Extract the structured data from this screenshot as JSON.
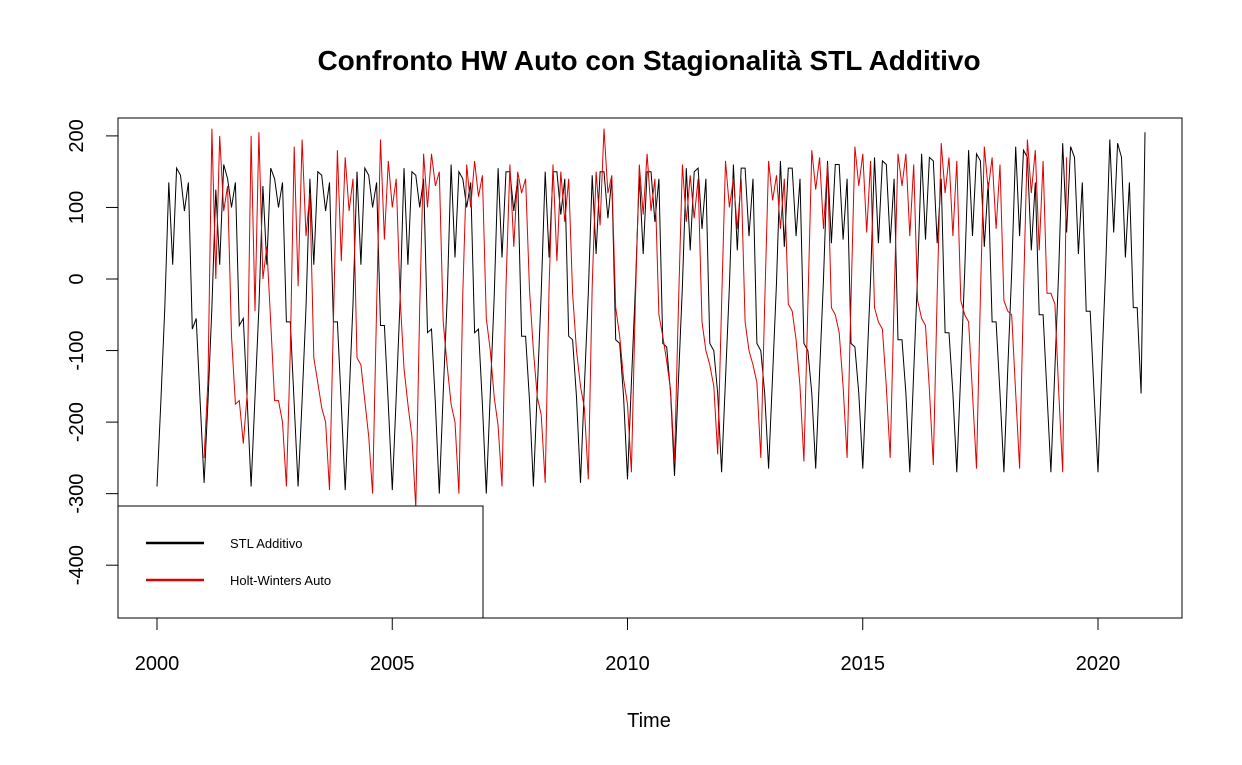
{
  "chart_data": {
    "type": "line",
    "title": "Confronto HW Auto con Stagionalità STL Additivo",
    "xlabel": "Time",
    "ylabel": "",
    "xlim": [
      2000,
      2021
    ],
    "ylim": [
      -470,
      225
    ],
    "x_ticks": [
      "2000",
      "2005",
      "2010",
      "2015",
      "2020"
    ],
    "y_ticks": [
      "200",
      "100",
      "0",
      "-100",
      "-200",
      "-300",
      "-400"
    ],
    "grid": false,
    "legend_position": "bottom-left",
    "frequency": 12,
    "series": [
      {
        "name": "STL Additivo",
        "color": "#000000",
        "start": 2000.0,
        "values": [
          -290,
          -170,
          -40,
          135,
          20,
          155,
          145,
          95,
          135,
          -70,
          -55,
          -170,
          -285,
          -170,
          -40,
          125,
          20,
          160,
          140,
          100,
          135,
          -65,
          -55,
          -170,
          -290,
          -165,
          -40,
          130,
          20,
          155,
          140,
          100,
          135,
          -60,
          -60,
          -175,
          -290,
          -170,
          -40,
          140,
          20,
          150,
          145,
          95,
          135,
          -60,
          -60,
          -175,
          -295,
          -165,
          -35,
          150,
          20,
          155,
          145,
          100,
          135,
          -65,
          -65,
          -175,
          -295,
          -165,
          -30,
          155,
          20,
          150,
          145,
          100,
          140,
          -75,
          -70,
          -175,
          -300,
          -160,
          -30,
          160,
          30,
          150,
          140,
          100,
          135,
          -75,
          -70,
          -175,
          -300,
          -160,
          -25,
          155,
          30,
          150,
          150,
          95,
          140,
          -80,
          -80,
          -170,
          -290,
          -155,
          -20,
          150,
          30,
          150,
          150,
          90,
          140,
          -80,
          -85,
          -165,
          -285,
          -150,
          -20,
          145,
          35,
          150,
          150,
          85,
          140,
          -85,
          -90,
          -165,
          -280,
          -145,
          -15,
          145,
          35,
          150,
          150,
          80,
          140,
          -90,
          -95,
          -160,
          -275,
          -140,
          -10,
          155,
          40,
          150,
          155,
          70,
          140,
          -90,
          -100,
          -160,
          -270,
          -140,
          -10,
          160,
          40,
          155,
          155,
          60,
          140,
          -90,
          -100,
          -160,
          -265,
          -135,
          -5,
          165,
          45,
          155,
          155,
          60,
          140,
          -90,
          -100,
          -160,
          -265,
          -130,
          0,
          165,
          50,
          160,
          160,
          55,
          140,
          -90,
          -95,
          -160,
          -265,
          -130,
          0,
          170,
          50,
          165,
          160,
          50,
          140,
          -85,
          -85,
          -160,
          -270,
          -130,
          5,
          175,
          55,
          170,
          165,
          50,
          140,
          -75,
          -75,
          -160,
          -270,
          -130,
          10,
          180,
          60,
          175,
          165,
          45,
          135,
          -60,
          -60,
          -160,
          -270,
          -125,
          10,
          185,
          60,
          180,
          170,
          40,
          135,
          -50,
          -50,
          -160,
          -270,
          -125,
          15,
          190,
          65,
          185,
          170,
          35,
          135,
          -45,
          -45,
          -160,
          -270,
          -120,
          20,
          195,
          65,
          190,
          170,
          30,
          135,
          -40,
          -40,
          -160,
          205
        ]
      },
      {
        "name": "Holt-Winters Auto",
        "color": "#e00000",
        "start": 2001.0,
        "values": [
          -250,
          -140,
          210,
          0,
          200,
          95,
          130,
          -80,
          -175,
          -170,
          -230,
          -160,
          200,
          -45,
          205,
          0,
          45,
          -60,
          -170,
          -170,
          -200,
          -290,
          -100,
          185,
          -10,
          195,
          60,
          120,
          -110,
          -145,
          -180,
          -200,
          -295,
          -60,
          180,
          25,
          170,
          95,
          140,
          -110,
          -120,
          -170,
          -220,
          -300,
          -40,
          195,
          55,
          165,
          100,
          140,
          -25,
          -125,
          -175,
          -220,
          -320,
          -40,
          175,
          100,
          175,
          130,
          150,
          -60,
          -120,
          -175,
          -200,
          -300,
          -20,
          160,
          100,
          165,
          115,
          145,
          -55,
          -100,
          -165,
          -205,
          -290,
          -10,
          160,
          45,
          150,
          120,
          140,
          -15,
          -100,
          -165,
          -190,
          -285,
          -10,
          160,
          25,
          150,
          80,
          140,
          -20,
          -100,
          -150,
          -180,
          -280,
          -10,
          150,
          75,
          210,
          120,
          145,
          -40,
          -80,
          -140,
          -175,
          -270,
          -35,
          160,
          90,
          175,
          95,
          140,
          -50,
          -80,
          -115,
          -155,
          -255,
          -35,
          160,
          80,
          145,
          85,
          140,
          -60,
          -100,
          -120,
          -150,
          -245,
          -35,
          165,
          100,
          140,
          70,
          140,
          -60,
          -100,
          -120,
          -145,
          -250,
          -35,
          165,
          110,
          145,
          70,
          140,
          -35,
          -45,
          -85,
          -150,
          -255,
          -35,
          180,
          125,
          170,
          70,
          160,
          -40,
          -50,
          -75,
          -150,
          -250,
          -30,
          185,
          130,
          175,
          65,
          165,
          -40,
          -60,
          -70,
          -150,
          -250,
          -30,
          175,
          130,
          175,
          60,
          160,
          -30,
          -55,
          -65,
          -155,
          -260,
          -20,
          190,
          120,
          170,
          60,
          165,
          -30,
          -50,
          -60,
          -160,
          -265,
          -25,
          185,
          125,
          170,
          70,
          160,
          -30,
          -45,
          -50,
          -160,
          -265,
          -20,
          195,
          120,
          180,
          40,
          165,
          -20,
          -20,
          -35,
          -160,
          -270,
          170
        ]
      }
    ]
  }
}
